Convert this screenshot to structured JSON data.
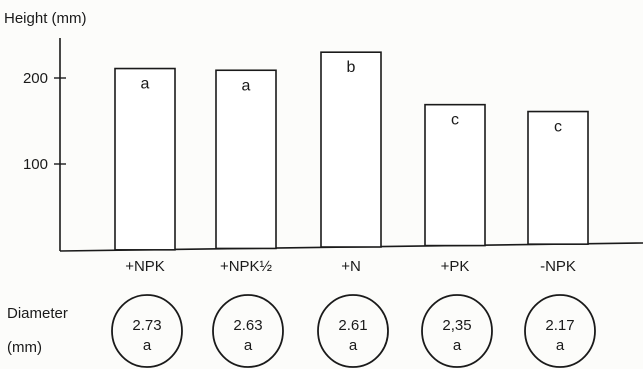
{
  "chart_data": {
    "type": "bar",
    "ylabel": "Height  (mm)",
    "yticks": [
      100,
      200
    ],
    "ylim": [
      0,
      250
    ],
    "categories": [
      "+NPK",
      "+NPK½",
      "+N",
      "+PK",
      "-NPK"
    ],
    "values": [
      211,
      209,
      230,
      169,
      161
    ],
    "bar_labels": [
      "a",
      "a",
      "b",
      "c",
      "c"
    ],
    "diameter": {
      "label_line1": "Diameter",
      "label_line2": "(mm)",
      "values": [
        "2.73",
        "2.63",
        "2.61",
        "2,35",
        "2.17"
      ],
      "letters": [
        "a",
        "a",
        "a",
        "a",
        "a"
      ]
    },
    "grid": false,
    "legend": "none"
  }
}
